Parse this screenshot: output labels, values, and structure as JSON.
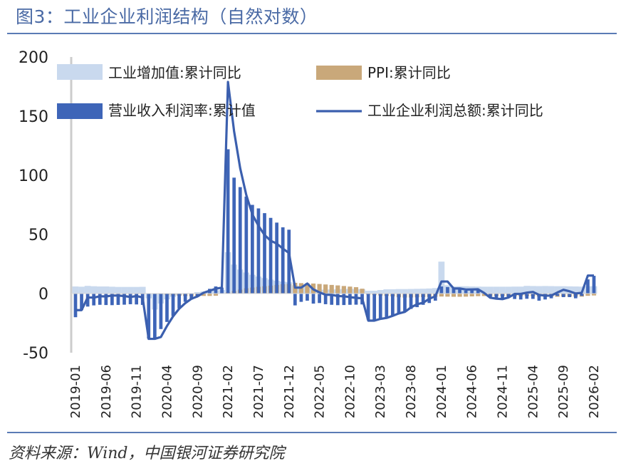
{
  "figure": {
    "title": "图3：工业企业利润结构（自然对数）",
    "source": "资料来源：Wind，中国银河证券研究院"
  },
  "colors": {
    "value_added": "#c9d9ee",
    "ppi": "#c9a87a",
    "margin": "#3e65b8",
    "profit": "#3b5fae",
    "axis": "#cccccc",
    "title": "#4a6aa5"
  },
  "chart_data": {
    "type": "bar",
    "title": "",
    "xlabel": "",
    "ylabel": "",
    "ylim": [
      -50,
      200
    ],
    "yticks": [
      -50,
      0,
      50,
      100,
      150,
      200
    ],
    "grid": false,
    "legend_position": "top",
    "x": [
      "2019-01",
      "2019-02",
      "2019-03",
      "2019-04",
      "2019-05",
      "2019-06",
      "2019-07",
      "2019-08",
      "2019-09",
      "2019-10",
      "2019-11",
      "2019-12",
      "2020-01",
      "2020-02",
      "2020-03",
      "2020-04",
      "2020-05",
      "2020-06",
      "2020-07",
      "2020-08",
      "2020-09",
      "2020-10",
      "2020-11",
      "2020-12",
      "2021-01",
      "2021-02",
      "2021-03",
      "2021-04",
      "2021-05",
      "2021-06",
      "2021-07",
      "2021-08",
      "2021-09",
      "2021-10",
      "2021-11",
      "2021-12",
      "2022-01",
      "2022-02",
      "2022-03",
      "2022-04",
      "2022-05",
      "2022-06",
      "2022-07",
      "2022-08",
      "2022-09",
      "2022-10",
      "2022-11",
      "2022-12",
      "2023-01",
      "2023-02",
      "2023-03",
      "2023-04",
      "2023-05",
      "2023-06",
      "2023-07",
      "2023-08",
      "2023-09",
      "2023-10",
      "2023-11",
      "2023-12",
      "2024-01",
      "2024-02",
      "2024-03",
      "2024-04",
      "2024-05",
      "2024-06",
      "2024-07",
      "2024-08",
      "2024-09",
      "2024-10",
      "2024-11",
      "2024-12",
      "2025-01",
      "2025-02",
      "2025-03",
      "2025-04",
      "2025-05",
      "2025-06",
      "2025-07",
      "2025-08",
      "2025-09",
      "2025-10",
      "2025-11",
      "2025-12",
      "2026-01",
      "2026-02"
    ],
    "xtick_labels": [
      "2019-01",
      "2019-06",
      "2019-11",
      "2020-04",
      "2020-09",
      "2021-02",
      "2021-07",
      "2021-12",
      "2022-05",
      "2022-10",
      "2023-03",
      "2023-08",
      "2024-01",
      "2024-06",
      "2024-11",
      "2025-04",
      "2025-09",
      "2026-02"
    ],
    "series": [
      {
        "name": "工业增加值:累计同比",
        "kind": "bar",
        "values": [
          6,
          5.8,
          6.5,
          6.2,
          6,
          6,
          5.8,
          5.6,
          5.6,
          5.6,
          5.6,
          5.7,
          -4,
          -13.5,
          -8.4,
          -4.9,
          -2.8,
          -1.3,
          0.4,
          0.4,
          1.2,
          1.8,
          2.3,
          2.8,
          3,
          35,
          24.5,
          20.3,
          17.8,
          15.9,
          14.4,
          13.1,
          11.8,
          10.9,
          10.1,
          9.6,
          7,
          6.5,
          6.5,
          4,
          3.3,
          3.4,
          3.5,
          3.6,
          3.9,
          4,
          3.8,
          3.6,
          2.4,
          2.4,
          3,
          3.6,
          3.6,
          3.8,
          3.8,
          3.9,
          4,
          4.1,
          4.3,
          4.6,
          27,
          7,
          6.1,
          6.2,
          6.2,
          6,
          5.9,
          5.8,
          5.8,
          5.8,
          5.8,
          5.8,
          5.9,
          5.9,
          6.5,
          6.4,
          6.3,
          6.4,
          6.3,
          6.2,
          6.2,
          6.1,
          6,
          5.9,
          6.2,
          6.2
        ]
      },
      {
        "name": "PPI:累计同比",
        "kind": "bar",
        "values": [
          0.1,
          0.1,
          0.2,
          0.3,
          0.3,
          0.2,
          0.1,
          0,
          -0.1,
          -0.2,
          -0.3,
          -0.3,
          0.1,
          -0.2,
          -0.6,
          -1.1,
          -1.5,
          -1.9,
          -2.1,
          -2.1,
          -2.1,
          -2,
          -2,
          -1.8,
          0.3,
          1.1,
          2.1,
          3.3,
          4.5,
          5.1,
          5.7,
          6.2,
          6.7,
          7.3,
          7.9,
          8.1,
          9.1,
          8.8,
          8.7,
          8.5,
          8.1,
          7.7,
          7.3,
          6.9,
          6.4,
          5.9,
          5.4,
          4.1,
          -0.8,
          -1.3,
          -1.6,
          -2,
          -2.4,
          -3.1,
          -3.4,
          -3.3,
          -3.2,
          -3,
          -2.9,
          -2.7,
          -2.5,
          -2.6,
          -2.7,
          -2.7,
          -2.6,
          -2.4,
          -2.2,
          -2.1,
          -2.1,
          -2.1,
          -2.1,
          -2.2,
          -2.3,
          -2.2,
          -2.1,
          -2.3,
          -2.5,
          -2.6,
          -2.7,
          -2.7,
          -2.6,
          -2.6,
          -2.6,
          -2.6,
          -1.9,
          -1.6
        ]
      },
      {
        "name": "营业收入利润率:累计值",
        "kind": "bar",
        "values": [
          -20,
          -14,
          -11,
          -10,
          -9.5,
          -9.7,
          -9.8,
          -9.6,
          -9.4,
          -9,
          -9.2,
          -9.6,
          -38,
          -38,
          -30,
          -24,
          -19,
          -12.5,
          -7,
          -5,
          -2,
          1,
          4,
          6,
          5,
          122,
          98,
          90,
          82,
          75,
          72,
          68,
          64,
          60,
          56,
          54,
          -10,
          -7,
          -6,
          -8.5,
          -8,
          -9,
          -9.5,
          -9.8,
          -9.7,
          -9.5,
          -9.4,
          -9.2,
          -22,
          -23,
          -22,
          -21,
          -19,
          -17,
          -15,
          -13,
          -11.5,
          -9.5,
          -8,
          -6,
          6,
          5.5,
          4.6,
          3.5,
          2.5,
          3.4,
          3.6,
          0.5,
          -3,
          -3.9,
          -4.3,
          -3.2,
          -4.6,
          -5,
          -4.4,
          -4.5,
          -6,
          -5,
          -4,
          -2,
          -3,
          -3,
          -4,
          -2,
          12,
          15
        ]
      },
      {
        "name": "工业企业利润总额:累计同比",
        "kind": "line",
        "values": [
          -14,
          -14,
          -3.3,
          -3.4,
          -2.3,
          -2.4,
          -1.7,
          -1.7,
          -2.1,
          -2.9,
          -2.1,
          -3.3,
          -38.3,
          -38.3,
          -36.7,
          -27.4,
          -19.3,
          -12.8,
          -8.1,
          -4.4,
          -2.4,
          0.7,
          2.4,
          4.1,
          5,
          178.9,
          137.3,
          106,
          83.4,
          66.9,
          57.3,
          49.5,
          44.7,
          42.2,
          38,
          34.3,
          5,
          5,
          8.5,
          3.5,
          1,
          -1,
          -1.1,
          -2.1,
          -2.3,
          -3,
          -3.6,
          -4,
          -22.9,
          -22.9,
          -21.4,
          -20.6,
          -18.8,
          -16.8,
          -15.5,
          -11.7,
          -9,
          -7.8,
          -4.4,
          -2.3,
          10.2,
          10.2,
          4.3,
          4.3,
          3.4,
          3.5,
          3.6,
          0.5,
          -3.5,
          -4.3,
          -4.7,
          -3.3,
          -0.3,
          -0.3,
          0.8,
          1.4,
          -1.1,
          -1.8,
          -1.7,
          0.9,
          3.2,
          1.9,
          0.1,
          0.6,
          15.2,
          15.2
        ]
      }
    ]
  }
}
